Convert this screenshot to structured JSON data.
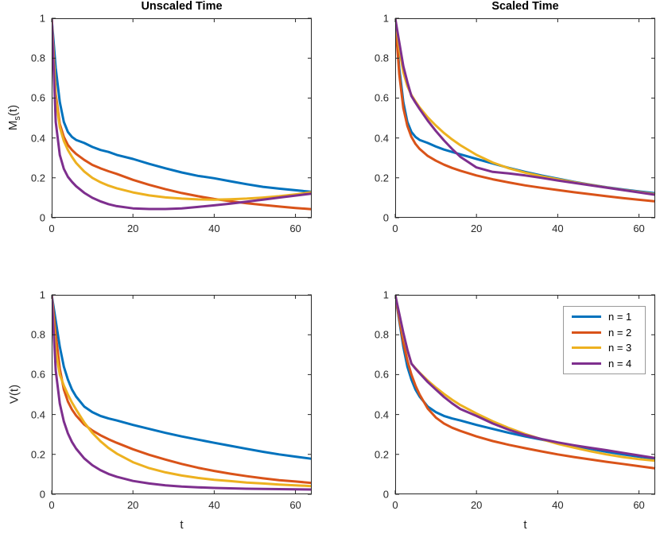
{
  "figure": {
    "background": "#ffffff",
    "axis_color": "#262626",
    "line_width": 3,
    "tick_length": 5
  },
  "legend": {
    "position": "top-right of bottom-right subplot",
    "entries": [
      {
        "label": "n = 1",
        "color": "#0072BD"
      },
      {
        "label": "n = 2",
        "color": "#D95319"
      },
      {
        "label": "n = 3",
        "color": "#EDB120"
      },
      {
        "label": "n = 4",
        "color": "#7E2F8E"
      }
    ]
  },
  "chart_data": [
    {
      "id": "unscaled-ms",
      "type": "line",
      "title": "Unscaled Time",
      "xlabel": "",
      "ylabel": {
        "base": "M",
        "sub": "s",
        "suffix": "(t)"
      },
      "xlim": [
        0,
        64
      ],
      "ylim": [
        0,
        1
      ],
      "xticks": [
        0,
        20,
        40,
        60
      ],
      "yticks": [
        0,
        0.2,
        0.4,
        0.6,
        0.8,
        1
      ],
      "grid": false,
      "x": [
        0,
        1,
        2,
        3,
        4,
        5,
        6,
        8,
        10,
        12,
        14,
        16,
        20,
        24,
        28,
        32,
        36,
        40,
        44,
        48,
        52,
        56,
        60,
        64
      ],
      "series": [
        {
          "name": "n = 1",
          "color": "#0072BD",
          "values": [
            1.0,
            0.75,
            0.58,
            0.48,
            0.43,
            0.405,
            0.39,
            0.375,
            0.355,
            0.34,
            0.33,
            0.315,
            0.295,
            0.27,
            0.248,
            0.227,
            0.21,
            0.198,
            0.183,
            0.168,
            0.155,
            0.146,
            0.138,
            0.13
          ]
        },
        {
          "name": "n = 2",
          "color": "#D95319",
          "values": [
            1.0,
            0.62,
            0.47,
            0.405,
            0.365,
            0.34,
            0.32,
            0.29,
            0.265,
            0.248,
            0.233,
            0.22,
            0.19,
            0.165,
            0.143,
            0.124,
            0.108,
            0.094,
            0.083,
            0.073,
            0.064,
            0.056,
            0.049,
            0.043
          ]
        },
        {
          "name": "n = 3",
          "color": "#EDB120",
          "values": [
            1.0,
            0.6,
            0.455,
            0.385,
            0.34,
            0.305,
            0.275,
            0.232,
            0.2,
            0.178,
            0.161,
            0.148,
            0.127,
            0.112,
            0.102,
            0.096,
            0.092,
            0.091,
            0.093,
            0.096,
            0.101,
            0.108,
            0.117,
            0.128
          ]
        },
        {
          "name": "n = 4",
          "color": "#7E2F8E",
          "values": [
            1.0,
            0.48,
            0.315,
            0.245,
            0.205,
            0.18,
            0.158,
            0.125,
            0.1,
            0.082,
            0.068,
            0.058,
            0.047,
            0.044,
            0.044,
            0.047,
            0.054,
            0.062,
            0.071,
            0.081,
            0.091,
            0.101,
            0.111,
            0.121
          ]
        }
      ]
    },
    {
      "id": "scaled-ms",
      "type": "line",
      "title": "Scaled Time",
      "xlabel": "",
      "ylabel": null,
      "xlim": [
        0,
        64
      ],
      "ylim": [
        0,
        1
      ],
      "xticks": [
        0,
        20,
        40,
        60
      ],
      "yticks": [
        0,
        0.2,
        0.4,
        0.6,
        0.8,
        1
      ],
      "grid": false,
      "x": [
        0,
        1,
        2,
        3,
        4,
        5,
        6,
        8,
        10,
        12,
        14,
        16,
        20,
        24,
        28,
        32,
        36,
        40,
        44,
        48,
        52,
        56,
        60,
        64
      ],
      "series": [
        {
          "name": "n = 1",
          "color": "#0072BD",
          "values": [
            1.0,
            0.75,
            0.58,
            0.48,
            0.43,
            0.405,
            0.39,
            0.375,
            0.357,
            0.342,
            0.33,
            0.318,
            0.295,
            0.272,
            0.25,
            0.23,
            0.212,
            0.196,
            0.18,
            0.166,
            0.153,
            0.142,
            0.132,
            0.123
          ]
        },
        {
          "name": "n = 2",
          "color": "#D95319",
          "values": [
            1.0,
            0.72,
            0.55,
            0.46,
            0.405,
            0.37,
            0.345,
            0.31,
            0.286,
            0.266,
            0.25,
            0.236,
            0.212,
            0.193,
            0.177,
            0.162,
            0.15,
            0.139,
            0.128,
            0.118,
            0.108,
            0.099,
            0.09,
            0.082
          ]
        },
        {
          "name": "n = 3",
          "color": "#EDB120",
          "values": [
            1.0,
            0.85,
            0.73,
            0.66,
            0.615,
            0.583,
            0.553,
            0.503,
            0.462,
            0.425,
            0.393,
            0.364,
            0.315,
            0.277,
            0.248,
            0.226,
            0.208,
            0.193,
            0.178,
            0.165,
            0.152,
            0.14,
            0.129,
            0.118
          ]
        },
        {
          "name": "n = 4",
          "color": "#7E2F8E",
          "values": [
            1.0,
            0.88,
            0.76,
            0.68,
            0.61,
            0.577,
            0.545,
            0.487,
            0.435,
            0.388,
            0.345,
            0.306,
            0.252,
            0.23,
            0.222,
            0.212,
            0.2,
            0.187,
            0.175,
            0.163,
            0.151,
            0.139,
            0.127,
            0.115
          ]
        }
      ]
    },
    {
      "id": "unscaled-v",
      "type": "line",
      "title": "",
      "xlabel": "t",
      "ylabel": {
        "base": "V",
        "sub": "",
        "suffix": "(t)"
      },
      "xlim": [
        0,
        64
      ],
      "ylim": [
        0,
        1
      ],
      "xticks": [
        0,
        20,
        40,
        60
      ],
      "yticks": [
        0,
        0.2,
        0.4,
        0.6,
        0.8,
        1
      ],
      "grid": false,
      "x": [
        0,
        1,
        2,
        3,
        4,
        5,
        6,
        8,
        10,
        12,
        14,
        16,
        20,
        24,
        28,
        32,
        36,
        40,
        44,
        48,
        52,
        56,
        60,
        64
      ],
      "series": [
        {
          "name": "n = 1",
          "color": "#0072BD",
          "values": [
            1.0,
            0.87,
            0.74,
            0.64,
            0.575,
            0.525,
            0.49,
            0.44,
            0.412,
            0.393,
            0.38,
            0.37,
            0.348,
            0.328,
            0.308,
            0.29,
            0.274,
            0.258,
            0.243,
            0.228,
            0.213,
            0.2,
            0.189,
            0.178
          ]
        },
        {
          "name": "n = 2",
          "color": "#D95319",
          "values": [
            1.0,
            0.8,
            0.63,
            0.525,
            0.465,
            0.425,
            0.395,
            0.35,
            0.32,
            0.296,
            0.276,
            0.258,
            0.226,
            0.198,
            0.174,
            0.152,
            0.133,
            0.117,
            0.103,
            0.091,
            0.08,
            0.071,
            0.064,
            0.057
          ]
        },
        {
          "name": "n = 3",
          "color": "#EDB120",
          "values": [
            1.0,
            0.72,
            0.6,
            0.545,
            0.5,
            0.46,
            0.425,
            0.36,
            0.308,
            0.266,
            0.232,
            0.204,
            0.161,
            0.131,
            0.11,
            0.094,
            0.082,
            0.073,
            0.066,
            0.059,
            0.054,
            0.049,
            0.045,
            0.041
          ]
        },
        {
          "name": "n = 4",
          "color": "#7E2F8E",
          "values": [
            1.0,
            0.62,
            0.455,
            0.365,
            0.305,
            0.262,
            0.229,
            0.18,
            0.146,
            0.121,
            0.102,
            0.088,
            0.067,
            0.054,
            0.045,
            0.039,
            0.035,
            0.032,
            0.03,
            0.028,
            0.027,
            0.026,
            0.025,
            0.024
          ]
        }
      ]
    },
    {
      "id": "scaled-v",
      "type": "line",
      "title": "",
      "xlabel": "t",
      "ylabel": null,
      "xlim": [
        0,
        64
      ],
      "ylim": [
        0,
        1
      ],
      "xticks": [
        0,
        20,
        40,
        60
      ],
      "yticks": [
        0,
        0.2,
        0.4,
        0.6,
        0.8,
        1
      ],
      "grid": false,
      "x": [
        0,
        1,
        2,
        3,
        4,
        5,
        6,
        8,
        10,
        12,
        14,
        16,
        20,
        24,
        28,
        32,
        36,
        40,
        44,
        48,
        52,
        56,
        60,
        64
      ],
      "series": [
        {
          "name": "n = 1",
          "color": "#0072BD",
          "values": [
            1.0,
            0.87,
            0.74,
            0.64,
            0.575,
            0.525,
            0.49,
            0.44,
            0.412,
            0.393,
            0.38,
            0.37,
            0.348,
            0.328,
            0.308,
            0.29,
            0.274,
            0.258,
            0.243,
            0.228,
            0.213,
            0.2,
            0.189,
            0.178
          ]
        },
        {
          "name": "n = 2",
          "color": "#D95319",
          "values": [
            1.0,
            0.88,
            0.76,
            0.67,
            0.6,
            0.545,
            0.5,
            0.43,
            0.385,
            0.355,
            0.334,
            0.318,
            0.29,
            0.267,
            0.248,
            0.231,
            0.215,
            0.2,
            0.187,
            0.175,
            0.163,
            0.152,
            0.141,
            0.13
          ]
        },
        {
          "name": "n = 3",
          "color": "#EDB120",
          "values": [
            1.0,
            0.9,
            0.8,
            0.72,
            0.655,
            0.632,
            0.61,
            0.57,
            0.535,
            0.503,
            0.474,
            0.448,
            0.405,
            0.366,
            0.332,
            0.302,
            0.276,
            0.253,
            0.234,
            0.216,
            0.2,
            0.187,
            0.176,
            0.168
          ]
        },
        {
          "name": "n = 4",
          "color": "#7E2F8E",
          "values": [
            1.0,
            0.905,
            0.81,
            0.725,
            0.655,
            0.63,
            0.607,
            0.563,
            0.525,
            0.488,
            0.456,
            0.428,
            0.393,
            0.355,
            0.323,
            0.297,
            0.277,
            0.26,
            0.246,
            0.233,
            0.221,
            0.208,
            0.195,
            0.182
          ]
        }
      ]
    }
  ]
}
